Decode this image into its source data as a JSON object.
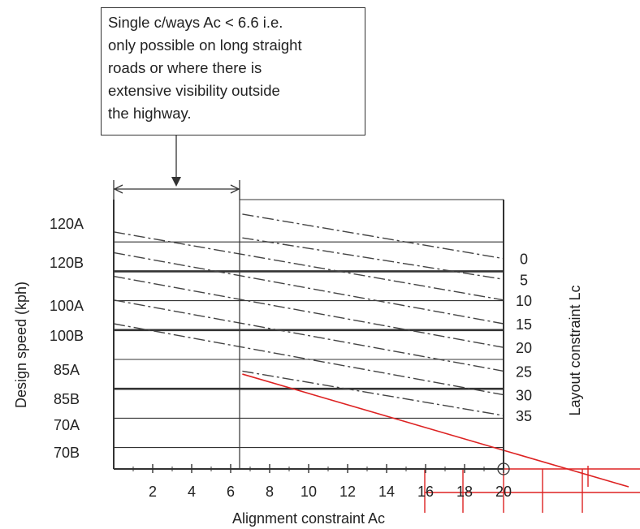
{
  "chart_data": {
    "type": "line",
    "annotation_lines": [
      "Single c/ways Ac < 6.6 i.e.",
      "only possible on long straight",
      "roads or where there is",
      "extensive visibility outside",
      "the highway."
    ],
    "xlabel": "Alignment constraint Ac",
    "ylabel_left": "Design speed (kph)",
    "ylabel_right": "Layout constraint Lc",
    "xlim": [
      0,
      20
    ],
    "x_ticks": [
      2,
      4,
      6,
      8,
      10,
      12,
      14,
      16,
      18,
      20
    ],
    "single_carriageway_limit_ac": 6.6,
    "speed_bands": [
      "120A",
      "120B",
      "100A",
      "100B",
      "85A",
      "85B",
      "70A",
      "70B"
    ],
    "lc_labels": [
      "0",
      "5",
      "10",
      "15",
      "20",
      "25",
      "30",
      "35"
    ],
    "series": [
      {
        "name": "0",
        "x": [
          6.6,
          20
        ],
        "y": [
          0.3,
          1.8
        ]
      },
      {
        "name": "5",
        "x": [
          6.6,
          20
        ],
        "y": [
          1.1,
          2.5
        ]
      },
      {
        "name": "10",
        "x": [
          0,
          20
        ],
        "y": [
          0.9,
          3.2
        ]
      },
      {
        "name": "15",
        "x": [
          0,
          20
        ],
        "y": [
          1.6,
          4.0
        ]
      },
      {
        "name": "20",
        "x": [
          0,
          20
        ],
        "y": [
          2.4,
          4.8
        ]
      },
      {
        "name": "25",
        "x": [
          0,
          20
        ],
        "y": [
          3.2,
          5.6
        ]
      },
      {
        "name": "30",
        "x": [
          0,
          20
        ],
        "y": [
          4.0,
          6.4
        ]
      },
      {
        "name": "35",
        "x": [
          6.6,
          20
        ],
        "y": [
          5.6,
          7.1
        ]
      }
    ],
    "highlight_line": {
      "x": [
        6.6,
        20
      ],
      "y": [
        5.7,
        7.8
      ],
      "color": "#dd2222"
    },
    "colors": {
      "axes": "#333333",
      "highlight": "#dd2222",
      "curves": "#444444"
    }
  }
}
